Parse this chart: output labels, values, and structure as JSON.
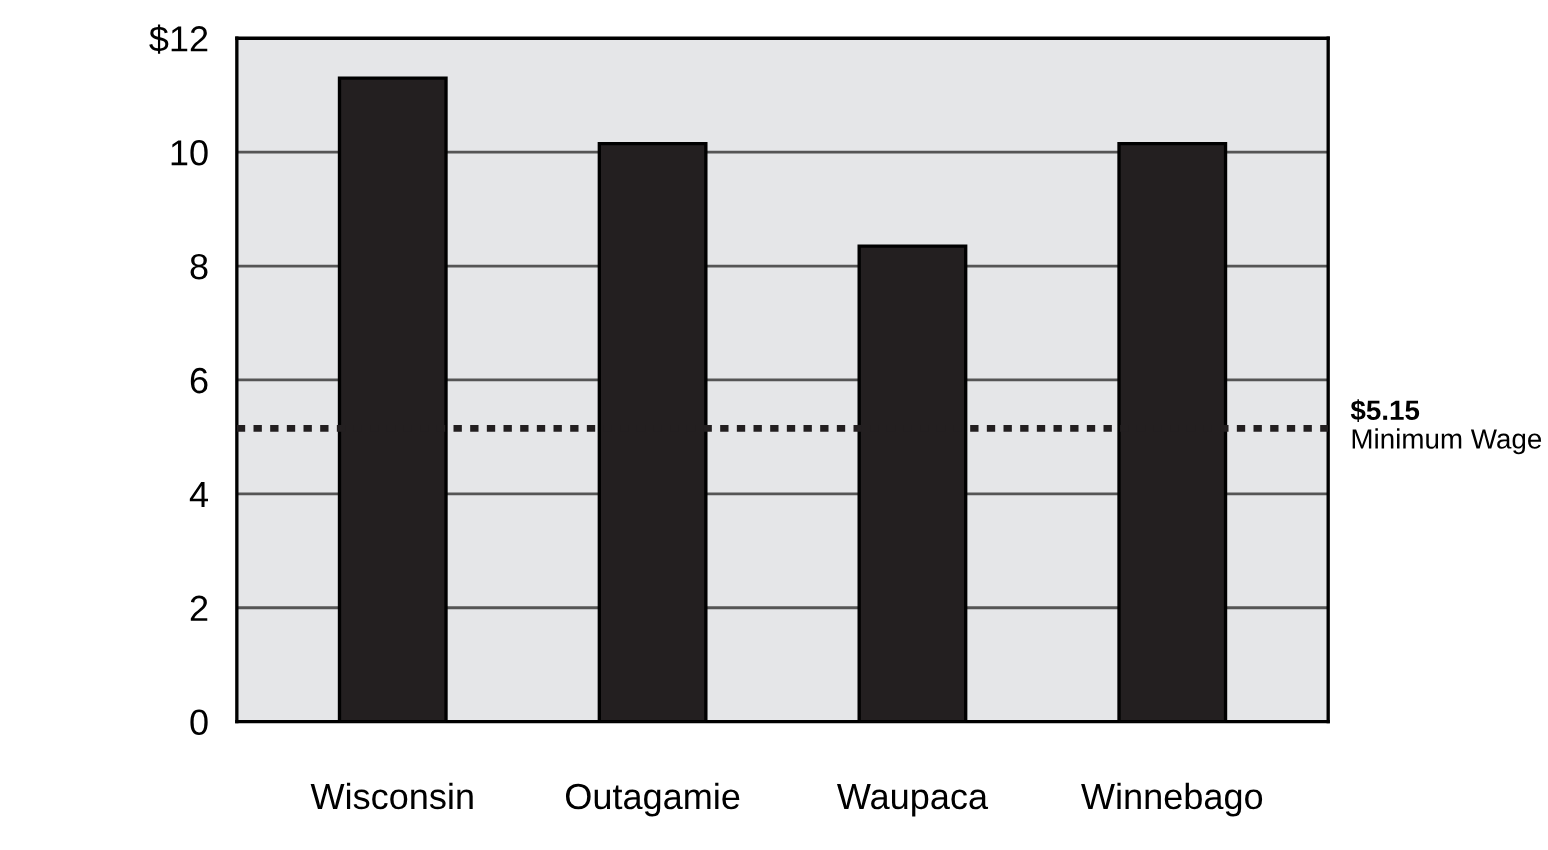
{
  "chart_data": {
    "type": "bar",
    "categories": [
      "Wisconsin",
      "Outagamie",
      "Waupaca",
      "Winnebago"
    ],
    "values": [
      11.3,
      10.15,
      8.35,
      10.15
    ],
    "color": "#231f20",
    "ylim": [
      0,
      12
    ],
    "yticks": [
      0,
      2,
      4,
      6,
      8,
      10,
      {
        "value": 12,
        "label": "$12"
      }
    ],
    "grid": "y",
    "ref_lines": [
      {
        "axis": "y",
        "value": 5.15,
        "label": "$5.15\nMinimum Wage",
        "color": "#231f20",
        "line_style": "dotted"
      }
    ]
  }
}
